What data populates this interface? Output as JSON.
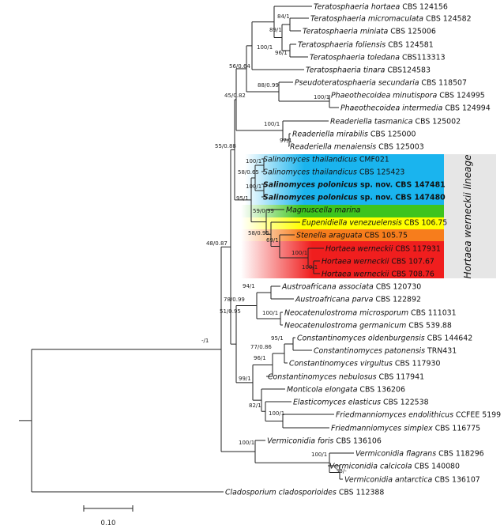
{
  "tips": [
    {
      "id": "t1",
      "genus": "Teratosphaeria",
      "epithet": "hortaea",
      "voucher": "CBS 124156"
    },
    {
      "id": "t2",
      "genus": "Teratosphaeria",
      "epithet": "micromaculata",
      "voucher": "CBS 124582"
    },
    {
      "id": "t3",
      "genus": "Teratosphaeria",
      "epithet": "miniata",
      "voucher": "CBS 125006"
    },
    {
      "id": "t4",
      "genus": "Teratosphaeria",
      "epithet": "foliensis",
      "voucher": "CBS 124581"
    },
    {
      "id": "t5",
      "genus": "Teratosphaeria",
      "epithet": "toledana",
      "voucher": "CBS113313"
    },
    {
      "id": "t6",
      "genus": "Teratosphaeria",
      "epithet": "tinara",
      "voucher": "CBS124583"
    },
    {
      "id": "t7",
      "genus": "Pseudoteratosphaeria",
      "epithet": "secundaria",
      "voucher": "CBS 118507"
    },
    {
      "id": "t8",
      "genus": "Phaeothecoidea",
      "epithet": "minutispora",
      "voucher": "CBS 124995"
    },
    {
      "id": "t9",
      "genus": "Phaeothecoidea",
      "epithet": "intermedia",
      "voucher": "CBS 124994"
    },
    {
      "id": "t10",
      "genus": "Readeriella",
      "epithet": "tasmanica",
      "voucher": "CBS 125002"
    },
    {
      "id": "t11",
      "genus": "Readeriella",
      "epithet": "mirabilis",
      "voucher": "CBS 125000"
    },
    {
      "id": "t12",
      "genus": "Readeriella",
      "epithet": "menaiensis",
      "voucher": "CBS 125003"
    },
    {
      "id": "t13",
      "genus": "Salinomyces",
      "epithet": "thailandicus",
      "voucher": "CMF021"
    },
    {
      "id": "t14",
      "genus": "Salinomyces",
      "epithet": "thailandicus",
      "voucher": "CBS 125423"
    },
    {
      "id": "t15",
      "genus": "Salinomyces",
      "epithet": "polonicus",
      "suffix": "sp. nov.",
      "voucher": "CBS 147481",
      "bold": true
    },
    {
      "id": "t16",
      "genus": "Salinomyces",
      "epithet": "polonicus",
      "suffix": "sp. nov.",
      "voucher": "CBS 147480",
      "bold": true
    },
    {
      "id": "t17",
      "genus": "Magnuscella",
      "epithet": "marina",
      "voucher": ""
    },
    {
      "id": "t18",
      "genus": "Eupenidiella",
      "epithet": "venezuelensis",
      "voucher": "CBS 106.75"
    },
    {
      "id": "t19",
      "genus": "Stenella",
      "epithet": "araguata",
      "voucher": "CBS 105.75"
    },
    {
      "id": "t20",
      "genus": "Hortaea",
      "epithet": "werneckii",
      "voucher": "CBS 117931"
    },
    {
      "id": "t21",
      "genus": "Hortaea",
      "epithet": "werneckii",
      "voucher": "CBS 107.67"
    },
    {
      "id": "t22",
      "genus": "Hortaea",
      "epithet": "werneckii",
      "voucher": "CBS 708.76"
    },
    {
      "id": "t23",
      "genus": "Austroafricana",
      "epithet": "associata",
      "voucher": "CBS 120730"
    },
    {
      "id": "t24",
      "genus": "Austroafricana",
      "epithet": "parva",
      "voucher": "CBS 122892"
    },
    {
      "id": "t25",
      "genus": "Neocatenulostroma",
      "epithet": "microsporum",
      "voucher": "CBS 111031"
    },
    {
      "id": "t26",
      "genus": "Neocatenulostroma",
      "epithet": "germanicum",
      "voucher": "CBS 539.88"
    },
    {
      "id": "t27",
      "genus": "Constantinomyces",
      "epithet": "oldenburgensis",
      "voucher": "CBS 144642"
    },
    {
      "id": "t28",
      "genus": "Constantinomyces",
      "epithet": "patonensis",
      "voucher": "TRN431"
    },
    {
      "id": "t29",
      "genus": "Constantinomyces",
      "epithet": "virgultus",
      "voucher": "CBS 117930"
    },
    {
      "id": "t30",
      "genus": "Constantinomyces",
      "epithet": "nebulosus",
      "voucher": "CBS 117941"
    },
    {
      "id": "t31",
      "genus": "Monticola",
      "epithet": "elongata",
      "voucher": "CBS 136206"
    },
    {
      "id": "t32",
      "genus": "Elasticomyces",
      "epithet": "elasticus",
      "voucher": "CBS 122538"
    },
    {
      "id": "t33",
      "genus": "Friedmanniomyces",
      "epithet": "endolithicus",
      "voucher": "CCFEE 5199"
    },
    {
      "id": "t34",
      "genus": "Friedmanniomyces",
      "epithet": "simplex",
      "voucher": "CBS 116775"
    },
    {
      "id": "t35",
      "genus": "Vermiconidia",
      "epithet": "foris",
      "voucher": "CBS 136106"
    },
    {
      "id": "t36",
      "genus": "Vermiconidia",
      "epithet": "flagrans",
      "voucher": "CBS 118296"
    },
    {
      "id": "t37",
      "genus": "Vermiconidia",
      "epithet": "calcicola",
      "voucher": "CBS 140080"
    },
    {
      "id": "t38",
      "genus": "Vermiconidia",
      "epithet": "antarctica",
      "voucher": "CBS 136107"
    },
    {
      "id": "t39",
      "genus": "Cladosporium",
      "epithet": "cladosporioides",
      "voucher": "CBS 112388"
    }
  ],
  "support_values": [
    "84/1",
    "89/1",
    "100/1",
    "96/1",
    "56/0.64",
    "88/0.99",
    "100/1",
    "45/0.82",
    "100/1",
    "97/1",
    "55/0.88",
    "100/1",
    "58/0.65",
    "100/1",
    "95/1",
    "59/0.99",
    "58/0.95",
    "69/1",
    "100/1",
    "100/1",
    "48/0.87",
    "94/1",
    "78/0.99",
    "100/1",
    "-/1",
    "95/1",
    "77/0.86",
    "51/0.95",
    "96/1",
    "99/1",
    "82/1",
    "100/1",
    "100/1",
    "100/1",
    "33/-"
  ],
  "lineage_label": "Hortaea werneckii lineage",
  "scale_bar_label": "0.10",
  "colors": {
    "salinomyces": "#1ab4ee",
    "magnuscella": "#3ec41e",
    "eupenidiella": "#ffff00",
    "stenella": "#f77d1c",
    "hortaea": "#f01e1e",
    "lineage_box": "#e6e6e6"
  }
}
